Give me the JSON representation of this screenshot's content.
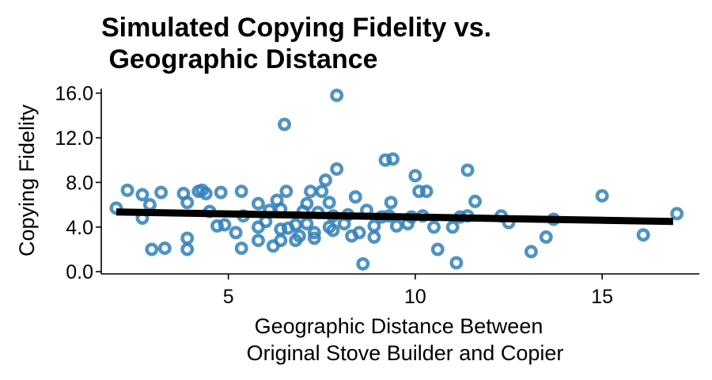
{
  "chart_data": {
    "type": "scatter",
    "title_lines": [
      "Simulated Copying Fidelity vs.",
      " Geographic Distance"
    ],
    "xlabel_lines": [
      "Geographic Distance Between",
      "Original Stove Builder and Copier"
    ],
    "ylabel": "Copying Fidelity",
    "xlim": [
      1.6,
      17.6
    ],
    "ylim": [
      -0.2,
      16.4
    ],
    "x_ticks": [
      5,
      10,
      15
    ],
    "x_tick_labels": [
      "5",
      "10",
      "15"
    ],
    "y_ticks": [
      0,
      4,
      8,
      12,
      16
    ],
    "y_tick_labels": [
      "0.0",
      "4.0",
      "8.0",
      "12.0",
      "16.0"
    ],
    "grid": false,
    "legend": "none",
    "point_color": "#3080b8",
    "fit_color": "#000000",
    "fit_line": {
      "x": [
        2.0,
        16.9
      ],
      "y": [
        5.35,
        4.5
      ]
    },
    "points": [
      [
        2.0,
        5.7
      ],
      [
        2.3,
        7.3
      ],
      [
        2.7,
        6.9
      ],
      [
        2.7,
        4.8
      ],
      [
        2.9,
        6.0
      ],
      [
        2.95,
        2.0
      ],
      [
        3.2,
        7.1
      ],
      [
        3.3,
        2.1
      ],
      [
        3.8,
        7.0
      ],
      [
        3.9,
        6.2
      ],
      [
        3.9,
        3.0
      ],
      [
        3.9,
        2.0
      ],
      [
        4.2,
        7.2
      ],
      [
        4.3,
        7.3
      ],
      [
        4.4,
        7.0
      ],
      [
        4.5,
        5.4
      ],
      [
        4.7,
        4.1
      ],
      [
        4.8,
        7.1
      ],
      [
        4.9,
        4.2
      ],
      [
        5.2,
        3.5
      ],
      [
        5.35,
        7.2
      ],
      [
        5.35,
        2.1
      ],
      [
        5.4,
        5.0
      ],
      [
        5.8,
        6.1
      ],
      [
        5.8,
        4.0
      ],
      [
        5.8,
        2.8
      ],
      [
        6.0,
        4.5
      ],
      [
        6.1,
        5.5
      ],
      [
        6.2,
        2.3
      ],
      [
        6.3,
        6.4
      ],
      [
        6.4,
        2.8
      ],
      [
        6.4,
        5.6
      ],
      [
        6.4,
        3.8
      ],
      [
        6.5,
        13.2
      ],
      [
        6.55,
        7.2
      ],
      [
        6.6,
        3.9
      ],
      [
        6.8,
        4.2
      ],
      [
        6.8,
        2.8
      ],
      [
        6.9,
        3.2
      ],
      [
        7.0,
        5.4
      ],
      [
        7.1,
        4.3
      ],
      [
        7.1,
        6.1
      ],
      [
        7.2,
        7.2
      ],
      [
        7.3,
        3.0
      ],
      [
        7.3,
        3.5
      ],
      [
        7.4,
        5.3
      ],
      [
        7.5,
        7.2
      ],
      [
        7.6,
        8.2
      ],
      [
        7.7,
        4.0
      ],
      [
        7.7,
        6.2
      ],
      [
        7.8,
        5.0
      ],
      [
        7.8,
        3.7
      ],
      [
        7.9,
        9.2
      ],
      [
        7.9,
        15.8
      ],
      [
        8.1,
        4.3
      ],
      [
        8.2,
        5.1
      ],
      [
        8.3,
        3.2
      ],
      [
        8.4,
        6.7
      ],
      [
        8.5,
        3.5
      ],
      [
        8.6,
        0.7
      ],
      [
        8.7,
        5.5
      ],
      [
        8.9,
        4.1
      ],
      [
        8.9,
        3.1
      ],
      [
        9.1,
        4.9
      ],
      [
        9.2,
        10.0
      ],
      [
        9.3,
        5.0
      ],
      [
        9.35,
        6.2
      ],
      [
        9.4,
        10.1
      ],
      [
        9.5,
        4.1
      ],
      [
        9.8,
        4.3
      ],
      [
        9.9,
        4.9
      ],
      [
        10.0,
        8.6
      ],
      [
        10.1,
        7.2
      ],
      [
        10.2,
        5.0
      ],
      [
        10.3,
        7.2
      ],
      [
        10.5,
        4.0
      ],
      [
        10.6,
        2.0
      ],
      [
        11.0,
        4.0
      ],
      [
        11.1,
        0.8
      ],
      [
        11.2,
        4.9
      ],
      [
        11.4,
        5.0
      ],
      [
        11.4,
        9.1
      ],
      [
        11.6,
        6.3
      ],
      [
        12.3,
        5.0
      ],
      [
        12.5,
        4.4
      ],
      [
        13.1,
        1.8
      ],
      [
        13.5,
        3.1
      ],
      [
        13.7,
        4.7
      ],
      [
        15.0,
        6.8
      ],
      [
        16.1,
        3.3
      ],
      [
        17.0,
        5.2
      ]
    ]
  }
}
